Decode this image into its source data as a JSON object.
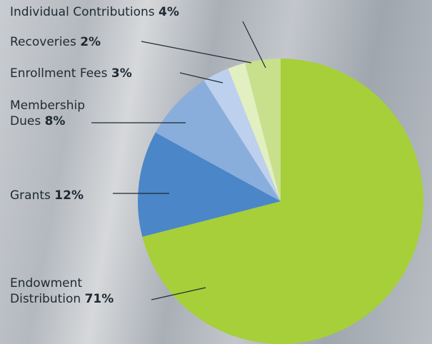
{
  "chart_data": {
    "type": "pie",
    "categories": [
      "Endowment Distribution",
      "Grants",
      "Membership Dues",
      "Enrollment Fees",
      "Recoveries",
      "Individual Contributions"
    ],
    "values": [
      71,
      12,
      8,
      3,
      2,
      4
    ],
    "value_labels": [
      "71%",
      "12%",
      "8%",
      "3%",
      "2%",
      "4%"
    ],
    "colors": [
      "#a6cf3a",
      "#4a86c8",
      "#8aaedc",
      "#bdd0ee",
      "#e2efc0",
      "#c8df8c"
    ]
  }
}
